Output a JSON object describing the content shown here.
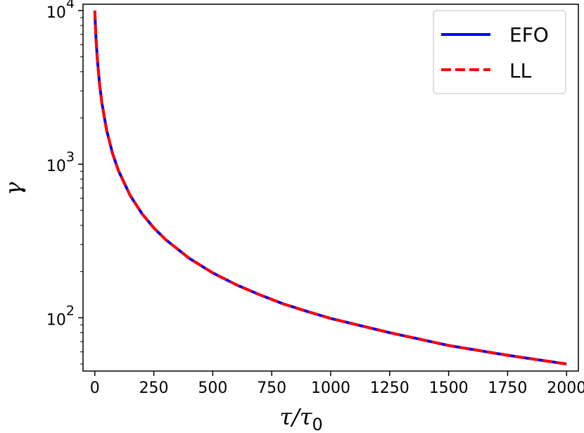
{
  "chart_data": {
    "type": "line",
    "xlabel": {
      "base": "τ/τ",
      "sub": "0"
    },
    "ylabel": "γ",
    "xlim": [
      -50,
      2050
    ],
    "ylim": [
      45,
      11000
    ],
    "yscale": "log",
    "grid": false,
    "legend_position": "top-right",
    "xticks": [
      0,
      250,
      500,
      750,
      1000,
      1250,
      1500,
      1750,
      2000
    ],
    "xtick_labels": [
      "0",
      "250",
      "500",
      "750",
      "1000",
      "1250",
      "1500",
      "1750",
      "2000"
    ],
    "yticks": [
      {
        "value": 100,
        "base": "10",
        "exp": "2"
      },
      {
        "value": 1000,
        "base": "10",
        "exp": "3"
      },
      {
        "value": 10000,
        "base": "10",
        "exp": "4"
      }
    ],
    "x": [
      0,
      2,
      5,
      10,
      20,
      30,
      50,
      75,
      100,
      150,
      200,
      250,
      300,
      400,
      500,
      600,
      700,
      800,
      900,
      1000,
      1250,
      1500,
      1750,
      2000
    ],
    "series": [
      {
        "name": "EFO",
        "color": "#0000ff",
        "style": "solid",
        "values": [
          10000,
          8333,
          6667,
          5000,
          3333,
          2500,
          1667,
          1176,
          909,
          625,
          476,
          385,
          323,
          244,
          196,
          164,
          141,
          123,
          110,
          99,
          80,
          66,
          57,
          50
        ]
      },
      {
        "name": "LL",
        "color": "#ff0000",
        "style": "dashed",
        "values": [
          10000,
          8333,
          6667,
          5000,
          3333,
          2500,
          1667,
          1176,
          909,
          625,
          476,
          385,
          323,
          244,
          196,
          164,
          141,
          123,
          110,
          99,
          80,
          66,
          57,
          50
        ]
      }
    ]
  }
}
